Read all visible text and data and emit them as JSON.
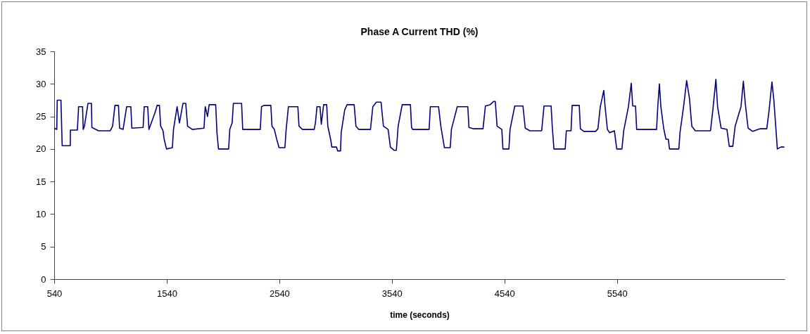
{
  "chart_data": {
    "type": "line",
    "title": "Phase A Current THD (%)",
    "xlabel": "time (seconds)",
    "xlim": [
      540,
      7030
    ],
    "xticks": [
      540,
      1540,
      2540,
      3540,
      4540,
      5540
    ],
    "ylim": [
      0,
      35
    ],
    "yticks": [
      0,
      5,
      10,
      15,
      20,
      25,
      30,
      35
    ],
    "grid": false,
    "x": [
      540,
      563,
      567,
      600,
      611,
      683,
      684,
      746,
      757,
      792,
      798,
      809,
      840,
      871,
      875,
      934,
      1038,
      1059,
      1080,
      1111,
      1121,
      1152,
      1184,
      1221,
      1230,
      1330,
      1340,
      1371,
      1382,
      1434,
      1455,
      1475,
      1486,
      1507,
      1517,
      1538,
      1590,
      1600,
      1632,
      1653,
      1684,
      1709,
      1725,
      1767,
      1871,
      1882,
      1902,
      1917,
      1975,
      1986,
      2000,
      2090,
      2100,
      2121,
      2132,
      2205,
      2215,
      2371,
      2382,
      2403,
      2465,
      2475,
      2496,
      2517,
      2538,
      2590,
      2600,
      2621,
      2705,
      2715,
      2746,
      2850,
      2861,
      2875,
      2902,
      2913,
      2934,
      2961,
      2971,
      2996,
      3007,
      3048,
      3059,
      3084,
      3090,
      3121,
      3142,
      3205,
      3221,
      3246,
      3350,
      3371,
      3402,
      3444,
      3465,
      3507,
      3527,
      3559,
      3580,
      3596,
      3632,
      3705,
      3715,
      3725,
      3871,
      3882,
      3955,
      3975,
      4007,
      4059,
      4069,
      4121,
      4215,
      4225,
      4267,
      4350,
      4371,
      4413,
      4444,
      4459,
      4475,
      4517,
      4527,
      4580,
      4590,
      4632,
      4705,
      4725,
      4767,
      4871,
      4892,
      4955,
      4965,
      4980,
      5080,
      5090,
      5132,
      5142,
      5205,
      5215,
      5246,
      5350,
      5371,
      5392,
      5423,
      5434,
      5455,
      5475,
      5517,
      5538,
      5584,
      5600,
      5642,
      5667,
      5680,
      5705,
      5715,
      5892,
      5903,
      5917,
      5930,
      5955,
      5975,
      5996,
      6007,
      6090,
      6100,
      6132,
      6159,
      6184,
      6205,
      6236,
      6371,
      6392,
      6419,
      6434,
      6465,
      6517,
      6538,
      6569,
      6590,
      6642,
      6663,
      6680,
      6705,
      6746,
      6809,
      6871,
      6892,
      6917,
      6934,
      6965,
      6996,
      7027
    ],
    "series": [
      {
        "color": "#000080",
        "values": [
          23.2,
          23,
          27.5,
          27.5,
          20.5,
          20.5,
          22.9,
          22.9,
          26.5,
          26.5,
          23,
          23.5,
          27,
          27,
          23.3,
          22.8,
          22.8,
          23.5,
          26.7,
          26.7,
          23.2,
          23,
          26.5,
          26.5,
          23.2,
          23.3,
          26.5,
          26.5,
          23,
          25.5,
          26.7,
          26.7,
          23.5,
          22.8,
          21.5,
          20,
          20.2,
          23,
          26.5,
          24,
          27,
          27,
          23.5,
          23,
          23.2,
          26.5,
          25,
          26.8,
          26.8,
          22.5,
          20,
          20,
          23,
          24,
          27,
          27,
          23,
          23,
          26.5,
          26.7,
          26.7,
          23.5,
          23,
          21.5,
          20.2,
          20.2,
          22.8,
          26.5,
          26.5,
          23.5,
          23,
          23,
          24,
          26.5,
          26.5,
          23.8,
          26.8,
          26.8,
          23.5,
          21.5,
          20.3,
          20.3,
          19.7,
          19.7,
          22.5,
          26,
          26.8,
          26.8,
          23.5,
          23,
          23,
          26.5,
          27.2,
          27.2,
          23.5,
          23,
          20.3,
          19.8,
          19.8,
          23.5,
          26.8,
          26.8,
          23.3,
          23,
          23,
          26.5,
          26.5,
          23.5,
          20.2,
          20.2,
          23,
          26.5,
          26.5,
          23.3,
          23.1,
          23.1,
          26.6,
          26.8,
          27.3,
          27.3,
          23.5,
          23,
          20,
          20,
          23,
          26.6,
          26.6,
          23.2,
          22.8,
          22.8,
          26.6,
          26.6,
          23.5,
          20,
          20,
          22.8,
          22.8,
          26.7,
          26.7,
          23.1,
          22.7,
          22.7,
          23.1,
          26.5,
          29,
          26.6,
          23,
          22.5,
          22.8,
          20,
          20,
          22.8,
          26.5,
          30.1,
          26.6,
          26.6,
          23,
          23,
          26.6,
          30,
          26.5,
          23.2,
          21.5,
          21.5,
          20,
          20,
          22.5,
          26.5,
          30.5,
          27.8,
          23.5,
          22.8,
          22.8,
          26,
          30.7,
          26.5,
          23.2,
          23,
          20.4,
          20.4,
          23.5,
          26.5,
          30.4,
          27,
          23.2,
          22.7,
          23.1,
          23.1,
          26,
          30.3,
          27.5,
          20,
          20.3,
          20.3
        ]
      }
    ]
  }
}
